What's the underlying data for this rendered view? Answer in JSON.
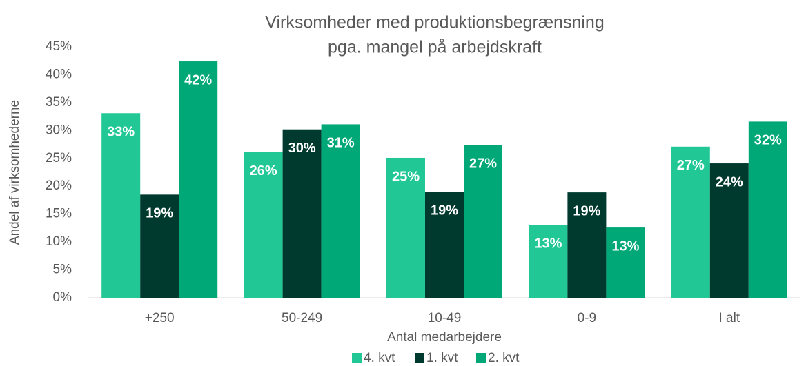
{
  "chart_data": {
    "type": "bar",
    "title": [
      "Virksomheder med produktionsbegrænsning",
      "pga. mangel på arbejdskraft"
    ],
    "y_label": "Andel af virksomhederne",
    "x_label": "Antal medarbejdere",
    "categories": [
      "+250",
      "50-249",
      "10-49",
      "0-9",
      "I alt"
    ],
    "series": [
      {
        "name": "4. kvt",
        "color": "#21c896",
        "values": [
          33.1,
          26.1,
          25.1,
          13.1,
          27.1
        ],
        "value_labels": [
          "33%",
          "26%",
          "25%",
          "13%",
          "27%"
        ]
      },
      {
        "name": "1. kvt",
        "color": "#003a2e",
        "values": [
          18.5,
          30.2,
          19.0,
          18.9,
          24.1
        ],
        "value_labels": [
          "19%",
          "30%",
          "19%",
          "19%",
          "24%"
        ]
      },
      {
        "name": "2. kvt",
        "color": "#00a878",
        "values": [
          42.4,
          31.1,
          27.4,
          12.6,
          31.6
        ],
        "value_labels": [
          "42%",
          "31%",
          "27%",
          "13%",
          "32%"
        ]
      }
    ],
    "ylim": [
      0,
      45
    ],
    "yticks": [
      {
        "value": 0,
        "label": "0%"
      },
      {
        "value": 5,
        "label": "5%"
      },
      {
        "value": 10,
        "label": "10%"
      },
      {
        "value": 15,
        "label": "15%"
      },
      {
        "value": 20,
        "label": "20%"
      },
      {
        "value": 25,
        "label": "25%"
      },
      {
        "value": 30,
        "label": "30%"
      },
      {
        "value": 35,
        "label": "35%"
      },
      {
        "value": 40,
        "label": "40%"
      },
      {
        "value": 45,
        "label": "45%"
      }
    ],
    "legend": "bottom"
  }
}
